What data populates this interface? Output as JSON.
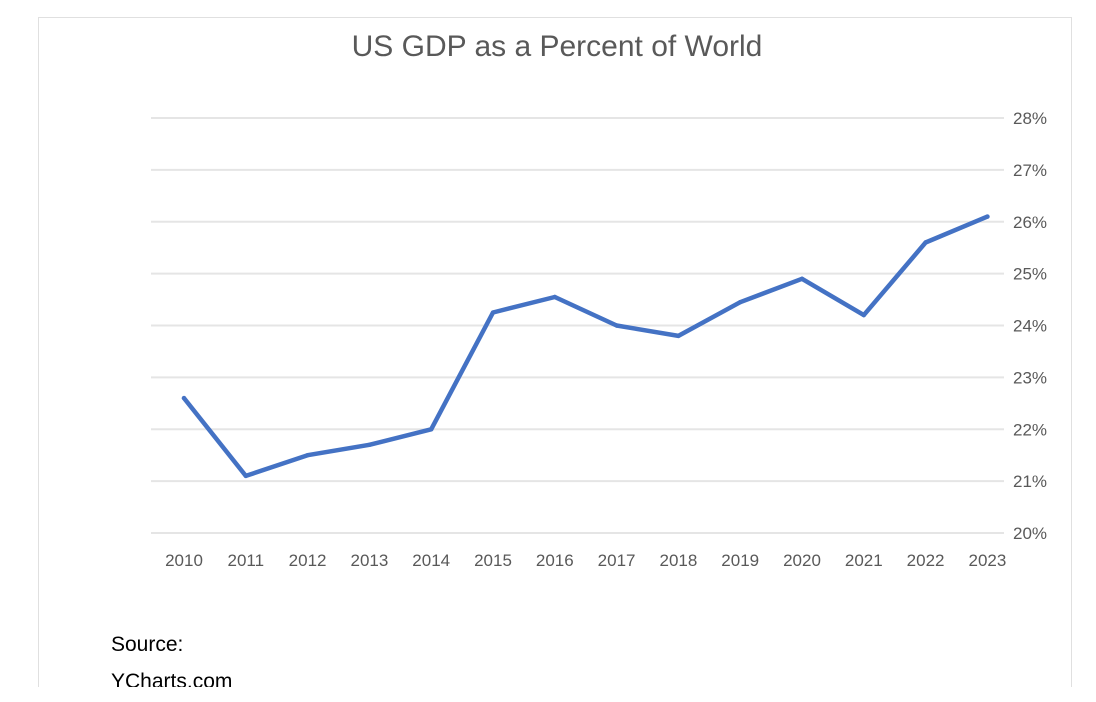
{
  "chart_data": {
    "type": "line",
    "title": "US GDP as a Percent of World",
    "xlabel": "",
    "ylabel": "",
    "x": [
      "2010",
      "2011",
      "2012",
      "2013",
      "2014",
      "2015",
      "2016",
      "2017",
      "2018",
      "2019",
      "2020",
      "2021",
      "2022",
      "2023"
    ],
    "series": [
      {
        "values": [
          22.6,
          21.1,
          21.5,
          21.7,
          22.0,
          24.25,
          24.55,
          24.0,
          23.8,
          24.45,
          24.9,
          24.2,
          25.6,
          26.1
        ]
      }
    ],
    "ylim": [
      20,
      28
    ],
    "yticks": [
      "20%",
      "21%",
      "22%",
      "23%",
      "24%",
      "25%",
      "26%",
      "27%",
      "28%"
    ],
    "y_axis_side": "right",
    "grid": true,
    "legend": "none",
    "line_color": "#4472c4",
    "grid_color": "#e5e5e5",
    "text_color": "#595959"
  },
  "source_note": [
    "Source:",
    "YCharts.com"
  ]
}
